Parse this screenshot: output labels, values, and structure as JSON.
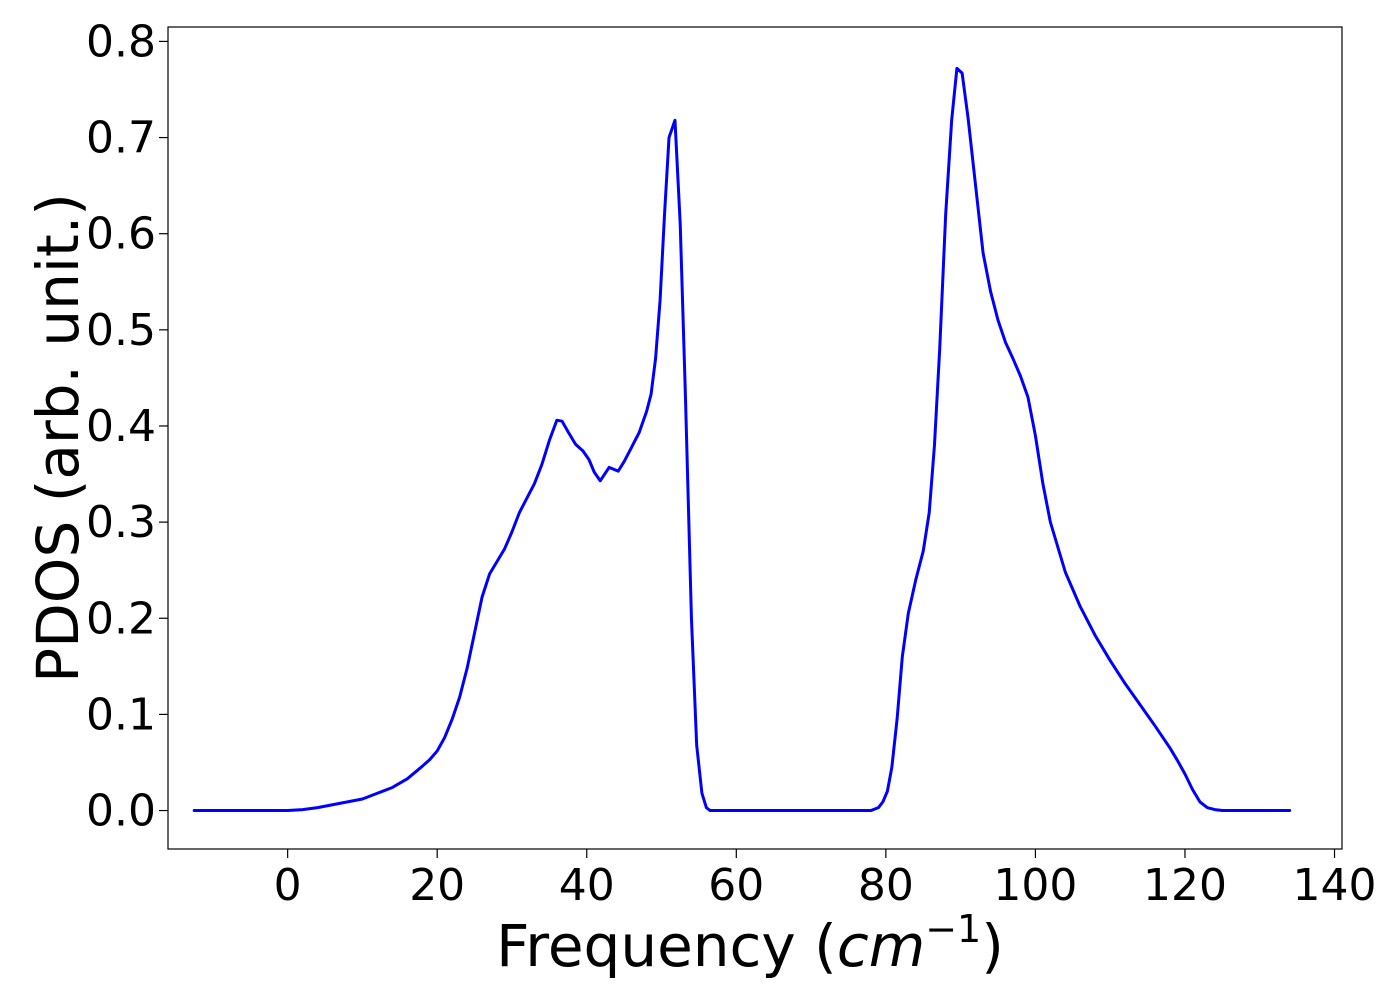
{
  "chart_data": {
    "type": "line",
    "title": "",
    "xlabel": {
      "prefix": "Frequency (",
      "math": "cm",
      "sup": "−1",
      "suffix": ")"
    },
    "ylabel": "PDOS (arb. unit.)",
    "xlim": [
      -16,
      141
    ],
    "ylim": [
      -0.04,
      0.815
    ],
    "xticks": [
      0,
      20,
      40,
      60,
      80,
      100,
      120,
      140
    ],
    "xtick_labels": [
      "0",
      "20",
      "40",
      "60",
      "80",
      "100",
      "120",
      "140"
    ],
    "yticks": [
      0.0,
      0.1,
      0.2,
      0.3,
      0.4,
      0.5,
      0.6,
      0.7,
      0.8
    ],
    "ytick_labels": [
      "0.0",
      "0.1",
      "0.2",
      "0.3",
      "0.4",
      "0.5",
      "0.6",
      "0.7",
      "0.8"
    ],
    "grid": false,
    "line_color": "#0000ff",
    "series": [
      {
        "x": [
          -12.5,
          -5,
          0,
          2,
          4,
          6,
          8,
          10,
          12,
          14,
          16,
          18,
          19,
          20,
          21,
          22,
          23,
          24,
          25,
          26,
          27,
          28,
          29,
          30,
          31,
          32,
          33,
          34,
          35,
          36,
          36.7,
          37.5,
          38.5,
          39.5,
          40.3,
          41,
          41.8,
          43,
          44.2,
          45,
          46,
          47,
          48,
          48.6,
          49.2,
          49.8,
          50.4,
          51,
          51.8,
          52.5,
          53.2,
          54,
          54.7,
          55.4,
          56,
          56.5,
          57.2,
          60,
          65,
          70,
          75,
          78,
          79,
          79.6,
          80.2,
          80.8,
          81.5,
          82.2,
          83,
          84,
          85,
          85.8,
          86.5,
          87.2,
          88,
          88.8,
          89.5,
          90.2,
          91,
          92,
          93,
          94,
          95,
          96,
          97,
          98,
          99,
          100,
          101,
          102,
          104,
          106,
          108,
          110,
          112,
          114,
          116,
          118,
          119,
          120,
          121,
          122,
          123,
          124,
          125,
          128,
          134
        ],
        "y": [
          0,
          0,
          0.0,
          0.001,
          0.003,
          0.006,
          0.009,
          0.012,
          0.018,
          0.024,
          0.033,
          0.046,
          0.053,
          0.062,
          0.076,
          0.095,
          0.118,
          0.148,
          0.185,
          0.222,
          0.246,
          0.259,
          0.272,
          0.29,
          0.31,
          0.325,
          0.34,
          0.36,
          0.385,
          0.406,
          0.405,
          0.394,
          0.381,
          0.374,
          0.365,
          0.352,
          0.343,
          0.357,
          0.353,
          0.363,
          0.378,
          0.393,
          0.415,
          0.433,
          0.47,
          0.53,
          0.62,
          0.7,
          0.718,
          0.61,
          0.43,
          0.2,
          0.068,
          0.018,
          0.003,
          0.0,
          0.0,
          0.0,
          0.0,
          0.0,
          0.0,
          0.0,
          0.003,
          0.009,
          0.02,
          0.045,
          0.095,
          0.16,
          0.205,
          0.24,
          0.27,
          0.31,
          0.38,
          0.48,
          0.62,
          0.718,
          0.772,
          0.767,
          0.72,
          0.65,
          0.58,
          0.54,
          0.51,
          0.487,
          0.47,
          0.452,
          0.43,
          0.39,
          0.34,
          0.3,
          0.248,
          0.212,
          0.182,
          0.156,
          0.132,
          0.11,
          0.088,
          0.065,
          0.052,
          0.038,
          0.022,
          0.009,
          0.003,
          0.001,
          0.0,
          0.0,
          0.0
        ]
      }
    ]
  }
}
